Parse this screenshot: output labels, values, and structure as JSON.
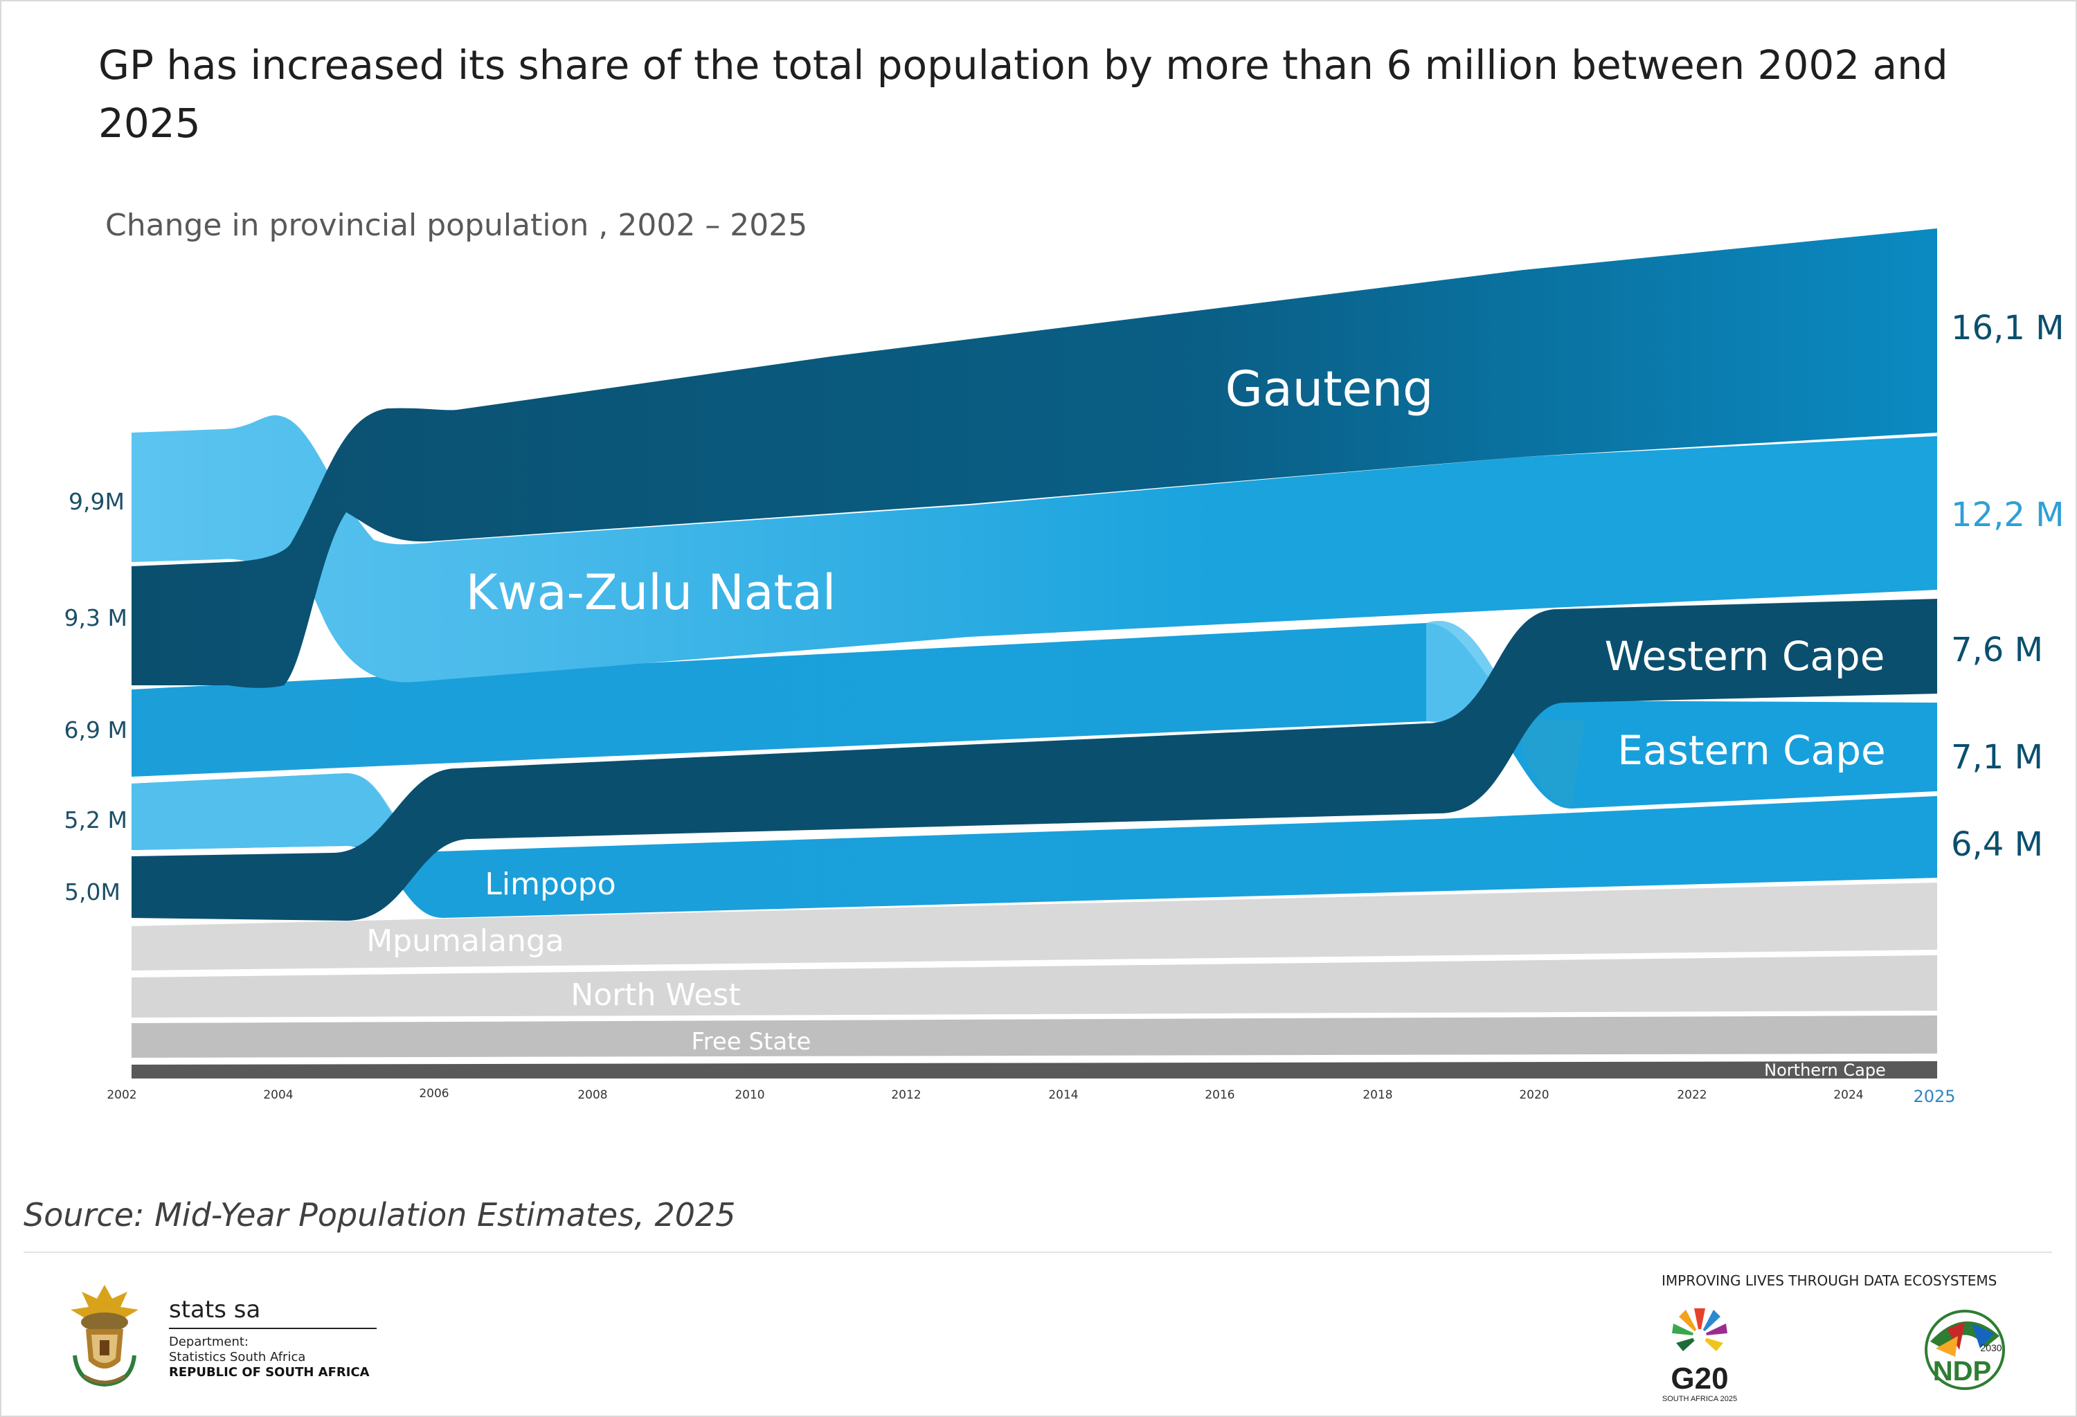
{
  "title": "GP has increased its share of the total population by more than 6 million between 2002 and 2025",
  "subtitle": "Change in provincial population , 2002 – 2025",
  "source": "Source: Mid-Year Population Estimates, 2025",
  "footer": {
    "org_name": "stats sa",
    "department": "Department:",
    "department_name": "Statistics South Africa",
    "country": "REPUBLIC OF SOUTH AFRICA",
    "tagline": "IMPROVING LIVES THROUGH DATA ECOSYSTEMS",
    "g20_text": "G20",
    "g20_sub": "SOUTH AFRICA 2025",
    "ndp_text": "NDP",
    "ndp_year": "2030"
  },
  "colors": {
    "dark": "#0b4f6e",
    "mid": "#1aa3dd",
    "light": "#5cc4f0",
    "grey1": "#d9d9d9",
    "grey2": "#d4d4d4",
    "grey3": "#bfbfbf",
    "grey4": "#595959"
  },
  "chart_data": {
    "type": "bump-area",
    "title": "Change in provincial population , 2002 – 2025",
    "x_ticks": [
      "2002",
      "2004",
      "2006",
      "2008",
      "2010",
      "2012",
      "2014",
      "2016",
      "2018",
      "2020",
      "2022",
      "2024",
      "2025"
    ],
    "start_labels": [
      {
        "rank": 1,
        "province": "Kwa-Zulu Natal",
        "label": "9,9M"
      },
      {
        "rank": 2,
        "province": "Gauteng",
        "label": "9,3 M"
      },
      {
        "rank": 3,
        "province": "Eastern Cape",
        "label": "6,9 M"
      },
      {
        "rank": 4,
        "province": "Limpopo",
        "label": "5,2 M"
      },
      {
        "rank": 5,
        "province": "Western Cape",
        "label": "5,0M"
      }
    ],
    "end_labels": [
      {
        "rank": 1,
        "province": "Gauteng",
        "label": "16,1 M"
      },
      {
        "rank": 2,
        "province": "Kwa-Zulu Natal",
        "label": "12,2 M"
      },
      {
        "rank": 3,
        "province": "Western Cape",
        "label": "7,6 M"
      },
      {
        "rank": 4,
        "province": "Eastern Cape",
        "label": "7,1 M"
      },
      {
        "rank": 5,
        "province": "Limpopo",
        "label": "6,4 M"
      }
    ],
    "series": [
      {
        "name": "Gauteng",
        "start_value": 9.3,
        "end_value": 16.1,
        "rank_change_year": 2005,
        "start_rank": 2,
        "end_rank": 1
      },
      {
        "name": "Kwa-Zulu Natal",
        "start_value": 9.9,
        "end_value": 12.2,
        "rank_change_year": 2005,
        "start_rank": 1,
        "end_rank": 2
      },
      {
        "name": "Western Cape",
        "start_value": 5.0,
        "end_value": 7.6,
        "rank_change_years": [
          2006,
          2020
        ],
        "start_rank": 5,
        "end_rank": 3
      },
      {
        "name": "Eastern Cape",
        "start_value": 6.9,
        "end_value": 7.1,
        "rank_change_year": 2020,
        "start_rank": 3,
        "end_rank": 4
      },
      {
        "name": "Limpopo",
        "start_value": 5.2,
        "end_value": 6.4,
        "rank_change_year": 2006,
        "start_rank": 4,
        "end_rank": 5
      },
      {
        "name": "Mpumalanga"
      },
      {
        "name": "North West"
      },
      {
        "name": "Free State"
      },
      {
        "name": "Northern Cape"
      }
    ]
  }
}
